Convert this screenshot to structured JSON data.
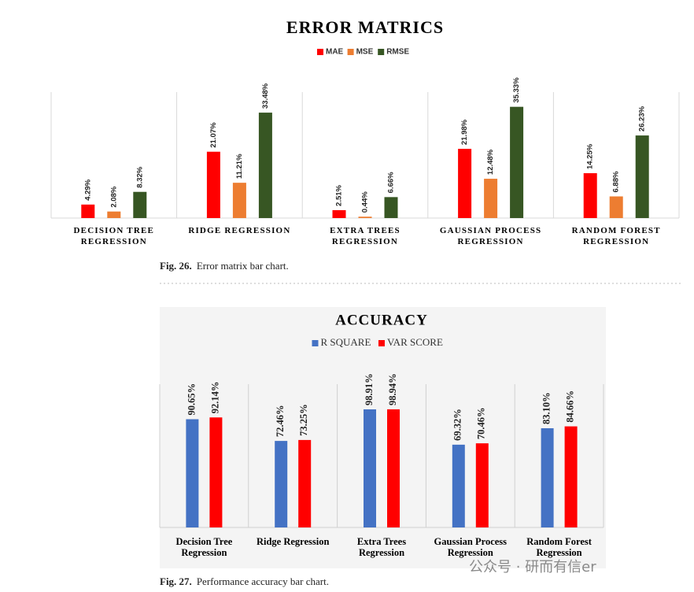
{
  "chart_data": [
    {
      "type": "bar",
      "title": "ERROR MATRICS",
      "categories": [
        "DECISION TREE REGRESSION",
        "RIDGE REGRESSION",
        "EXTRA TREES REGRESSION",
        "GAUSSIAN PROCESS REGRESSION",
        "RANDOM FOREST REGRESSION"
      ],
      "series": [
        {
          "name": "MAE",
          "color": "#ff0000",
          "values": [
            4.29,
            21.07,
            2.51,
            21.98,
            14.25
          ],
          "value_labels": [
            "4.29%",
            "21.07%",
            "2.51%",
            "21.98%",
            "14.25%"
          ]
        },
        {
          "name": "MSE",
          "color": "#ed7d31",
          "values": [
            2.08,
            11.21,
            0.44,
            12.48,
            6.88
          ],
          "value_labels": [
            "2.08%",
            "11.21%",
            "0.44%",
            "12.48%",
            "6.88%"
          ]
        },
        {
          "name": "RMSE",
          "color": "#375623",
          "values": [
            8.32,
            33.48,
            6.66,
            35.33,
            26.23
          ],
          "value_labels": [
            "8.32%",
            "33.48%",
            "6.66%",
            "35.33%",
            "26.23%"
          ]
        }
      ],
      "ylim": [
        0,
        40
      ],
      "legend": "top"
    },
    {
      "type": "bar",
      "title": "ACCURACY",
      "categories": [
        "Decision Tree Regression",
        "Ridge Regression",
        "Extra Trees Regression",
        "Gaussian Process Regression",
        "Random Forest Regression"
      ],
      "series": [
        {
          "name": "R SQUARE",
          "color": "#4472c4",
          "values": [
            90.65,
            72.46,
            98.91,
            69.32,
            83.1
          ],
          "value_labels": [
            "90.65%",
            "72.46%",
            "98.91%",
            "69.32%",
            "83.10%"
          ]
        },
        {
          "name": "VAR SCORE",
          "color": "#ff0000",
          "values": [
            92.14,
            73.25,
            98.94,
            70.46,
            84.66
          ],
          "value_labels": [
            "92.14%",
            "73.25%",
            "98.94%",
            "70.46%",
            "84.66%"
          ]
        }
      ],
      "ylim": [
        0,
        120
      ],
      "legend": "top"
    }
  ],
  "captions": [
    {
      "label": "Fig. 26.",
      "text": "Error matrix bar chart."
    },
    {
      "label": "Fig. 27.",
      "text": "Performance accuracy bar chart."
    }
  ],
  "watermark": "公众号 · 研而有信er"
}
